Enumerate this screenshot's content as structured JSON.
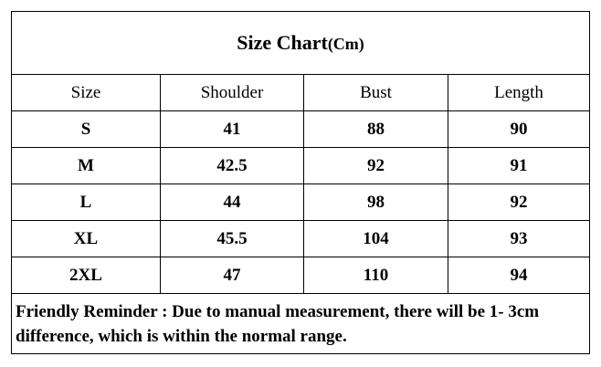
{
  "table": {
    "title": "Size Chart",
    "unit": "(Cm)",
    "header": [
      "Size",
      "Shoulder",
      "Bust",
      "Length"
    ],
    "rows": [
      [
        "S",
        41,
        88,
        90
      ],
      [
        "M",
        42.5,
        92,
        91
      ],
      [
        "L",
        44,
        98,
        92
      ],
      [
        "XL",
        45.5,
        104,
        93
      ],
      [
        "2XL",
        47,
        110,
        94
      ]
    ],
    "note": "Friendly Reminder : Due to manual measurement, there will be 1- 3cm difference, which is within the normal range."
  }
}
